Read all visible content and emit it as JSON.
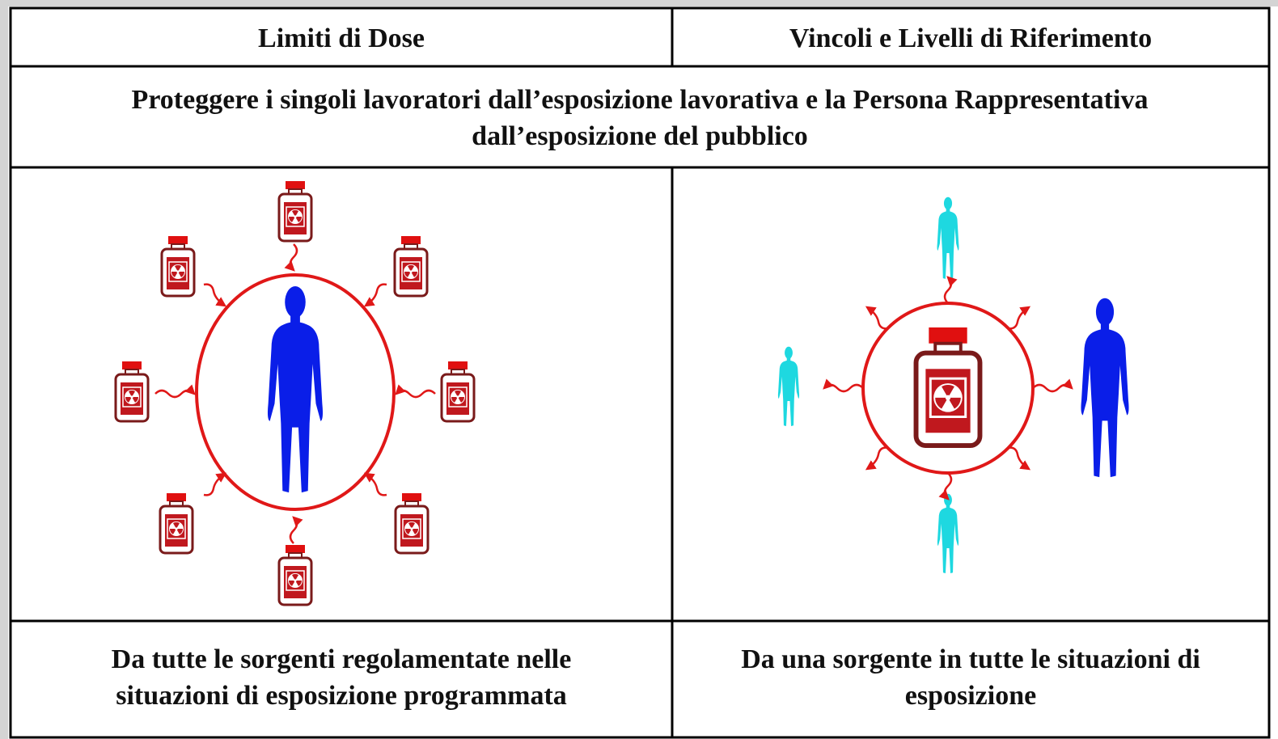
{
  "table": {
    "header": [
      "Limiti di Dose",
      "Vincoli e Livelli di Riferimento"
    ],
    "purpose": [
      "Proteggere i singoli lavoratori dall’esposizione lavorativa e la Persona Rappresentativa",
      "dall’esposizione del pubblico"
    ],
    "footer": [
      [
        "Da tutte le sorgenti regolamentate nelle",
        "situazioni di esposizione programmata"
      ],
      [
        "Da una sorgente in tutte le situazioni di",
        "esposizione"
      ]
    ]
  }
}
